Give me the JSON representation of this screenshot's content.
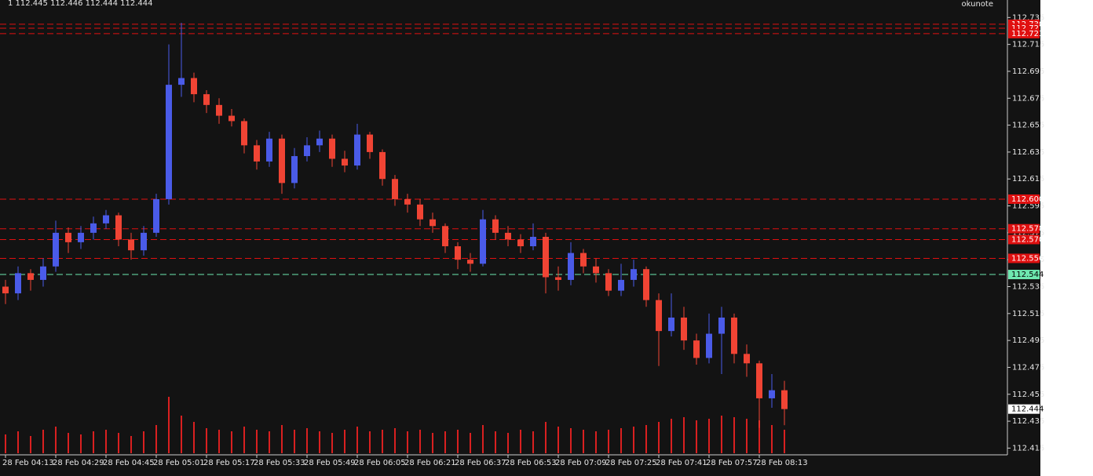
{
  "chart_data": {
    "type": "candlestick",
    "ohlc_text": "1  112.445 112.446 112.444 112.444",
    "watermark": "okunote",
    "categories": [
      "28 Feb 04:13",
      null,
      null,
      null,
      "28 Feb 04:29",
      null,
      null,
      null,
      "28 Feb 04:45",
      null,
      null,
      null,
      "28 Feb 05:01",
      null,
      null,
      null,
      "28 Feb 05:17",
      null,
      null,
      null,
      "28 Feb 05:33",
      null,
      null,
      null,
      "28 Feb 05:49",
      null,
      null,
      null,
      "28 Feb 06:05",
      null,
      null,
      null,
      "28 Feb 06:21",
      null,
      null,
      null,
      "28 Feb 06:37",
      null,
      null,
      null,
      "28 Feb 06:53",
      null,
      null,
      null,
      "28 Feb 07:09",
      null,
      null,
      null,
      "28 Feb 07:25",
      null,
      null,
      null,
      "28 Feb 07:41",
      null,
      null,
      null,
      "28 Feb 07:57",
      null,
      null,
      null,
      "28 Feb 08:13",
      null,
      null
    ],
    "open": [
      112.535,
      112.53,
      112.545,
      112.54,
      112.55,
      112.575,
      112.568,
      112.575,
      112.582,
      112.588,
      112.57,
      112.562,
      112.575,
      112.6,
      112.685,
      112.69,
      112.678,
      112.67,
      112.662,
      112.658,
      112.64,
      112.628,
      112.645,
      112.612,
      112.632,
      112.64,
      112.645,
      112.63,
      112.625,
      112.648,
      112.635,
      112.615,
      112.6,
      112.596,
      112.585,
      112.58,
      112.565,
      112.555,
      112.552,
      112.585,
      112.575,
      112.57,
      112.565,
      112.572,
      112.542,
      112.54,
      112.56,
      112.55,
      112.545,
      112.532,
      112.54,
      112.548,
      112.525,
      112.502,
      112.512,
      112.495,
      112.482,
      112.5,
      112.512,
      112.485,
      112.478,
      112.452,
      112.458
    ],
    "high": [
      112.54,
      112.55,
      112.548,
      112.556,
      112.584,
      112.579,
      112.58,
      112.587,
      112.592,
      112.59,
      112.575,
      112.58,
      112.604,
      112.715,
      112.731,
      112.694,
      112.681,
      112.675,
      112.667,
      112.66,
      112.644,
      112.65,
      112.648,
      112.638,
      112.646,
      112.651,
      112.648,
      112.636,
      112.656,
      112.65,
      112.637,
      112.618,
      112.604,
      112.6,
      112.59,
      112.582,
      112.568,
      112.56,
      112.592,
      112.588,
      112.58,
      112.574,
      112.582,
      112.575,
      112.55,
      112.568,
      112.563,
      112.556,
      112.548,
      112.552,
      112.555,
      112.55,
      112.53,
      112.53,
      112.52,
      112.5,
      112.515,
      112.52,
      112.515,
      112.492,
      112.48,
      112.47,
      112.465
    ],
    "low": [
      112.522,
      112.525,
      112.532,
      112.535,
      112.546,
      112.56,
      112.563,
      112.57,
      112.578,
      112.565,
      112.555,
      112.558,
      112.572,
      112.596,
      112.676,
      112.672,
      112.664,
      112.656,
      112.654,
      112.634,
      112.622,
      112.624,
      112.604,
      112.608,
      112.628,
      112.635,
      112.624,
      112.62,
      112.622,
      112.63,
      112.61,
      112.595,
      112.59,
      112.58,
      112.575,
      112.56,
      112.548,
      112.546,
      112.55,
      112.57,
      112.565,
      112.56,
      112.562,
      112.53,
      112.532,
      112.536,
      112.545,
      112.538,
      112.528,
      112.528,
      112.535,
      112.52,
      112.476,
      112.498,
      112.488,
      112.477,
      112.478,
      112.47,
      112.478,
      112.468,
      112.43,
      112.445,
      112.432
    ],
    "close": [
      112.53,
      112.545,
      112.54,
      112.55,
      112.575,
      112.568,
      112.575,
      112.582,
      112.588,
      112.57,
      112.562,
      112.575,
      112.6,
      112.685,
      112.69,
      112.678,
      112.67,
      112.662,
      112.658,
      112.64,
      112.628,
      112.645,
      112.612,
      112.632,
      112.64,
      112.645,
      112.63,
      112.625,
      112.648,
      112.635,
      112.615,
      112.6,
      112.596,
      112.585,
      112.58,
      112.565,
      112.555,
      112.552,
      112.585,
      112.575,
      112.57,
      112.565,
      112.572,
      112.542,
      112.54,
      112.56,
      112.55,
      112.545,
      112.532,
      112.54,
      112.548,
      112.525,
      112.502,
      112.512,
      112.495,
      112.482,
      112.5,
      112.512,
      112.485,
      112.478,
      112.452,
      112.458,
      112.444
    ],
    "volume": [
      24,
      28,
      22,
      30,
      34,
      26,
      24,
      28,
      30,
      26,
      22,
      28,
      36,
      72,
      48,
      40,
      32,
      30,
      28,
      34,
      30,
      28,
      36,
      30,
      32,
      28,
      26,
      30,
      34,
      28,
      30,
      32,
      28,
      30,
      26,
      28,
      30,
      26,
      36,
      28,
      26,
      30,
      28,
      40,
      34,
      32,
      30,
      28,
      30,
      32,
      34,
      36,
      40,
      44,
      46,
      42,
      44,
      48,
      46,
      44,
      42,
      36,
      30
    ],
    "up_color": "#4a5be8",
    "down_color": "#f04434",
    "volume_color": "#d92020",
    "ylim": [
      112.41,
      112.748
    ],
    "yticks": [
      112.415,
      112.435,
      112.455,
      112.475,
      112.495,
      112.515,
      112.535,
      112.555,
      112.575,
      112.595,
      112.615,
      112.635,
      112.655,
      112.675,
      112.695,
      112.715,
      112.735
    ],
    "levels": [
      {
        "value": 112.73,
        "label": "112.730",
        "color": "#e01010"
      },
      {
        "value": 112.727,
        "label": "112.727",
        "color": "#e01010"
      },
      {
        "value": 112.723,
        "label": "112.723",
        "color": "#e01010"
      },
      {
        "value": 112.6,
        "label": "112.600",
        "color": "#e01010"
      },
      {
        "value": 112.578,
        "label": "112.578",
        "color": "#e01010"
      },
      {
        "value": 112.57,
        "label": "112.570",
        "color": "#e01010"
      },
      {
        "value": 112.556,
        "label": "112.556",
        "color": "#e01010"
      },
      {
        "value": 112.544,
        "label": "112.544",
        "color": "#6ee8b0"
      }
    ],
    "last_price": 112.444
  }
}
